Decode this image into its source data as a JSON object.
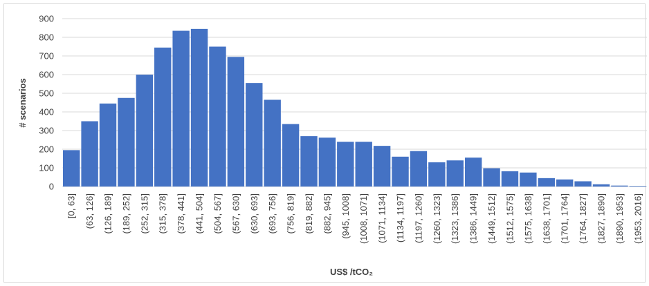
{
  "chart_data": {
    "type": "bar",
    "title": "",
    "xlabel": "US$ /tCO₂",
    "ylabel": "# scenarios",
    "ylim": [
      0,
      900
    ],
    "yticks": [
      0,
      100,
      200,
      300,
      400,
      500,
      600,
      700,
      800,
      900
    ],
    "grid": true,
    "bar_color": "#4472c4",
    "categories": [
      "[0, 63]",
      "(63, 126]",
      "(126, 189]",
      "(189, 252]",
      "(252, 315]",
      "(315, 378]",
      "(378, 441]",
      "(441, 504]",
      "(504, 567]",
      "(567, 630]",
      "(630, 693]",
      "(693, 756]",
      "(756, 819]",
      "(819, 882]",
      "(882, 945]",
      "(945, 1008]",
      "(1008, 1071]",
      "(1071, 1134]",
      "(1134, 1197]",
      "(1197, 1260]",
      "(1260, 1323]",
      "(1323, 1386]",
      "(1386, 1449]",
      "(1449, 1512]",
      "(1512, 1575]",
      "(1575, 1638]",
      "(1638, 1701]",
      "(1701, 1764]",
      "(1764, 1827]",
      "(1827, 1890]",
      "(1890, 1953]",
      "(1953, 2016]"
    ],
    "values": [
      195,
      350,
      445,
      475,
      600,
      745,
      835,
      845,
      750,
      695,
      555,
      465,
      335,
      270,
      262,
      240,
      240,
      218,
      160,
      190,
      130,
      140,
      155,
      98,
      82,
      75,
      45,
      38,
      28,
      12,
      5,
      3
    ]
  }
}
